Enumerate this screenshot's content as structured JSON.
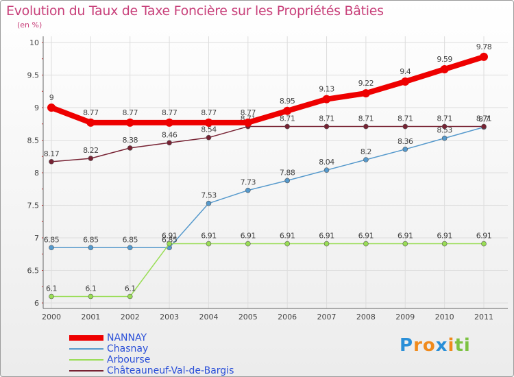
{
  "chart_data": {
    "type": "line",
    "title": "Evolution du Taux de Taxe Foncière sur les Propriétés Bâties",
    "subtitle": "(en %)",
    "x": [
      "2000",
      "2001",
      "2002",
      "2003",
      "2004",
      "2005",
      "2006",
      "2007",
      "2008",
      "2009",
      "2010",
      "2011"
    ],
    "ylim": [
      6,
      10
    ],
    "yticks": [
      "6",
      "6.5",
      "7",
      "7.5",
      "8",
      "8.5",
      "9",
      "9.5",
      "10"
    ],
    "grid": true,
    "legend_position": "bottom-left",
    "series": [
      {
        "name": "NANNAY",
        "color": "#ee0000",
        "width": "thick",
        "values": [
          9,
          8.77,
          8.77,
          8.77,
          8.77,
          8.77,
          8.95,
          9.13,
          9.22,
          9.4,
          9.59,
          9.78
        ],
        "labels": [
          "9",
          "8.77",
          "8.77",
          "8.77",
          "8.77",
          "8.77",
          "8.95",
          "9.13",
          "9.22",
          "9.4",
          "9.59",
          "9.78"
        ]
      },
      {
        "name": "Chasnay",
        "color": "#5599cc",
        "width": "thin",
        "values": [
          6.85,
          6.85,
          6.85,
          6.85,
          7.53,
          7.73,
          7.88,
          8.04,
          8.2,
          8.36,
          8.53,
          8.7
        ],
        "labels": [
          "6.85",
          "6.85",
          "6.85",
          "6.85",
          "7.53",
          "7.73",
          "7.88",
          "8.04",
          "8.2",
          "8.36",
          "8.53",
          "8.7"
        ]
      },
      {
        "name": "Arbourse",
        "color": "#99dd55",
        "width": "thin",
        "values": [
          6.1,
          6.1,
          6.1,
          6.91,
          6.91,
          6.91,
          6.91,
          6.91,
          6.91,
          6.91,
          6.91,
          6.91
        ],
        "labels": [
          "6.1",
          "6.1",
          "6.1",
          "6.91",
          "6.91",
          "6.91",
          "6.91",
          "6.91",
          "6.91",
          "6.91",
          "6.91",
          "6.91"
        ]
      },
      {
        "name": "Châteauneuf-Val-de-Bargis",
        "color": "#772233",
        "width": "thin",
        "values": [
          8.17,
          8.22,
          8.38,
          8.46,
          8.54,
          8.71,
          8.71,
          8.71,
          8.71,
          8.71,
          8.71,
          8.71
        ],
        "labels": [
          "8.17",
          "8.22",
          "8.38",
          "8.46",
          "8.54",
          "8.71",
          "8.71",
          "8.71",
          "8.71",
          "8.71",
          "8.71",
          "8.71"
        ]
      }
    ]
  },
  "logo": {
    "letters": [
      "P",
      "r",
      "o",
      "x",
      "i",
      "t",
      "i"
    ],
    "colors": [
      "#2a8fd8",
      "#f08a1c",
      "#f08a1c",
      "#2a8fd8",
      "#f08a1c",
      "#7cc242",
      "#7cc242"
    ]
  }
}
